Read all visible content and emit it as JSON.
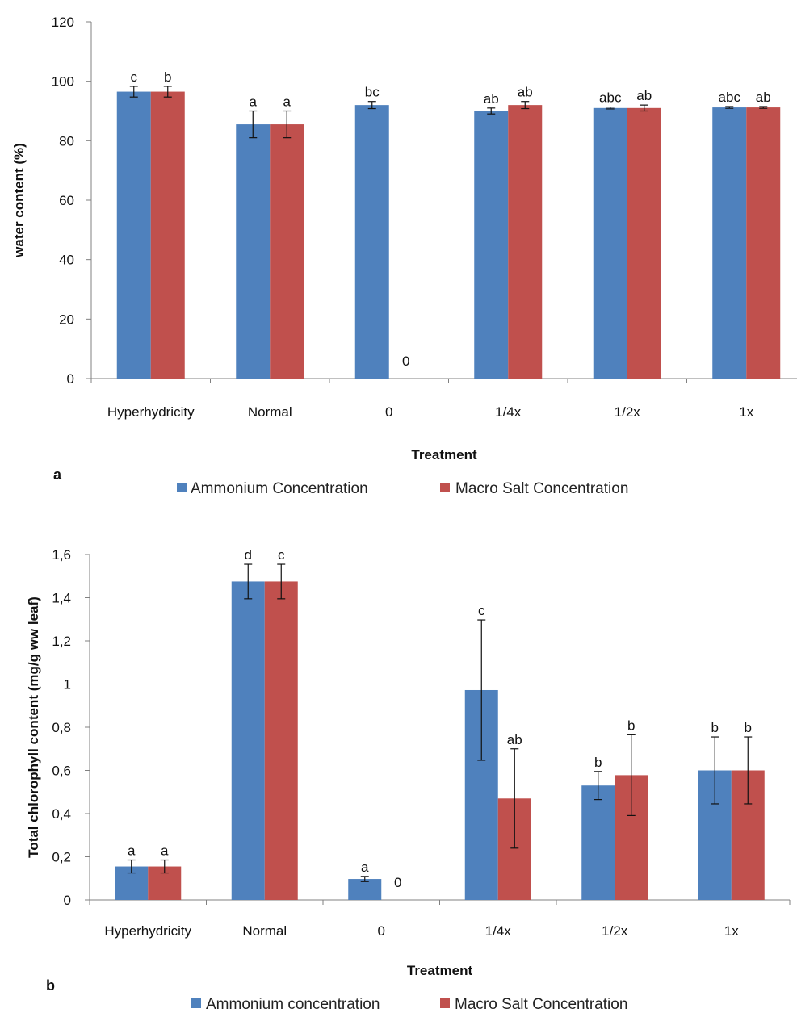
{
  "colors": {
    "series1": "#4F81BD",
    "series2": "#C0504D",
    "axis": "#808080",
    "error": "#111111"
  },
  "chart_data": [
    {
      "type": "bar",
      "panel_label": "a",
      "categories": [
        "Hyperhydricity",
        "Normal",
        "0",
        "1/4x",
        "1/2x",
        "1x"
      ],
      "xlabel": "Treatment",
      "ylabel": "water content (%)",
      "ylim": [
        0,
        120
      ],
      "yticks": [
        0,
        20,
        40,
        60,
        80,
        100,
        120
      ],
      "ytick_labels": [
        "0",
        "20",
        "40",
        "60",
        "80",
        "100",
        "120"
      ],
      "grid": false,
      "legend_position": "bottom",
      "series": [
        {
          "name": "Ammonium Concentration",
          "values": [
            96.5,
            85.5,
            92.0,
            90.0,
            91.0,
            91.2
          ],
          "errors": [
            1.8,
            4.5,
            1.2,
            1.0,
            0.3,
            0.3
          ],
          "annotations": [
            "c",
            "a",
            "bc",
            "ab",
            "abc",
            "abc"
          ]
        },
        {
          "name": "Macro Salt Concentration",
          "values": [
            96.5,
            85.5,
            0,
            92.0,
            91.0,
            91.2
          ],
          "errors": [
            1.8,
            4.5,
            0,
            1.2,
            1.0,
            0.3
          ],
          "annotations": [
            "b",
            "a",
            "0",
            "ab",
            "ab",
            "ab"
          ]
        }
      ]
    },
    {
      "type": "bar",
      "panel_label": "b",
      "categories": [
        "Hyperhydricity",
        "Normal",
        "0",
        "1/4x",
        "1/2x",
        "1x"
      ],
      "xlabel": "Treatment",
      "ylabel": "Total chlorophyll content (mg/g ww leaf)",
      "ylim": [
        0,
        1.6
      ],
      "yticks": [
        0,
        0.2,
        0.4,
        0.6,
        0.8,
        1.0,
        1.2,
        1.4,
        1.6
      ],
      "ytick_labels": [
        "0",
        "0,2",
        "0,4",
        "0,6",
        "0,8",
        "1",
        "1,2",
        "1,4",
        "1,6"
      ],
      "grid": false,
      "legend_position": "bottom",
      "series": [
        {
          "name": "Ammonium concentration",
          "values": [
            0.155,
            1.475,
            0.097,
            0.972,
            0.53,
            0.6
          ],
          "errors": [
            0.03,
            0.08,
            0.012,
            0.325,
            0.065,
            0.155
          ],
          "annotations": [
            "a",
            "d",
            "a",
            "c",
            "b",
            "b"
          ]
        },
        {
          "name": "Macro Salt Concentration",
          "values": [
            0.155,
            1.475,
            0,
            0.47,
            0.578,
            0.6
          ],
          "errors": [
            0.03,
            0.08,
            0,
            0.23,
            0.187,
            0.155
          ],
          "annotations": [
            "a",
            "c",
            "0",
            "ab",
            "b",
            "b"
          ]
        }
      ]
    }
  ]
}
